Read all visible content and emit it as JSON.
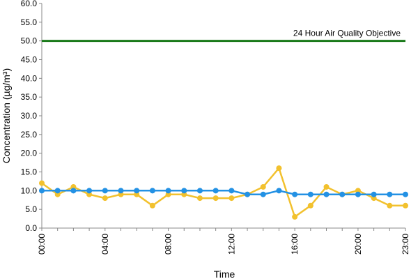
{
  "chart_data": {
    "type": "line",
    "xlabel": "Time",
    "ylabel": "Concentration (µg/m³)",
    "ylim": [
      0,
      60
    ],
    "ytick_step": 5,
    "ytick_labels": [
      "0.0",
      "5.0",
      "10.0",
      "15.0",
      "20.0",
      "25.0",
      "30.0",
      "35.0",
      "40.0",
      "45.0",
      "50.0",
      "55.0",
      "60.0"
    ],
    "x": [
      "00:00",
      "01:00",
      "02:00",
      "03:00",
      "04:00",
      "05:00",
      "06:00",
      "07:00",
      "08:00",
      "09:00",
      "10:00",
      "11:00",
      "12:00",
      "13:00",
      "14:00",
      "15:00",
      "16:00",
      "17:00",
      "18:00",
      "19:00",
      "20:00",
      "21:00",
      "22:00",
      "23:00"
    ],
    "xtick_labels": [
      "00:00",
      "04:00",
      "08:00",
      "12:00",
      "16:00",
      "20:00",
      "23:00"
    ],
    "grid": false,
    "legend": "none",
    "series": [
      {
        "color": "#f2c12e",
        "values": [
          12,
          9,
          11,
          9,
          8,
          9,
          9,
          6,
          9,
          9,
          8,
          8,
          8,
          9,
          11,
          16,
          3,
          6,
          11,
          9,
          10,
          8,
          6,
          6
        ]
      },
      {
        "color": "#2391e4",
        "values": [
          10,
          10,
          10,
          10,
          10,
          10,
          10,
          10,
          10,
          10,
          10,
          10,
          10,
          9,
          9,
          10,
          9,
          9,
          9,
          9,
          9,
          9,
          9,
          9
        ]
      }
    ],
    "reference_line": {
      "value": 50,
      "label": "24 Hour Air Quality Objective",
      "color": "#1a7a1a"
    }
  }
}
